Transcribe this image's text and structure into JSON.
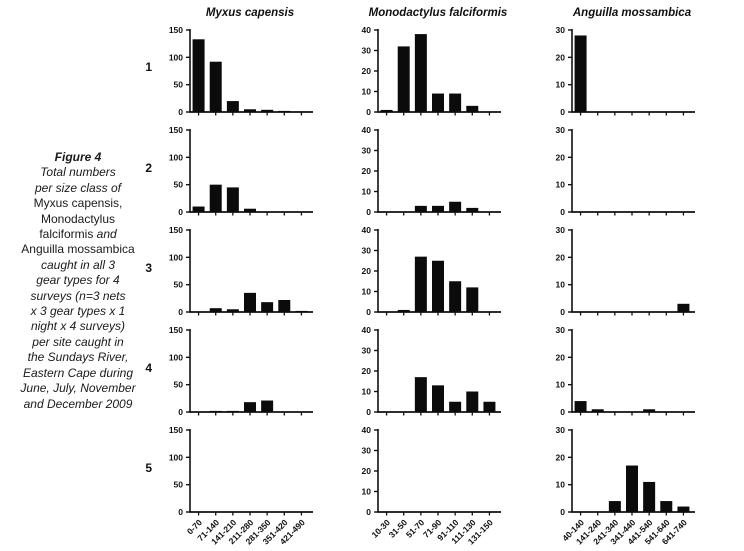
{
  "caption": {
    "lines": [
      [
        {
          "text": "Figure 4",
          "style": "bold-italic"
        }
      ],
      [
        {
          "text": "Total numbers",
          "style": "italic"
        }
      ],
      [
        {
          "text": "per size class of",
          "style": "italic"
        }
      ],
      [
        {
          "text": "Myxus capensis,",
          "style": "normal"
        }
      ],
      [
        {
          "text": "Monodactylus",
          "style": "normal"
        }
      ],
      [
        {
          "text": "falciformis ",
          "style": "normal"
        },
        {
          "text": "and",
          "style": "italic"
        }
      ],
      [
        {
          "text": "Anguilla mossambica",
          "style": "normal"
        }
      ],
      [
        {
          "text": "caught in all 3",
          "style": "italic"
        }
      ],
      [
        {
          "text": "gear types for 4",
          "style": "italic"
        }
      ],
      [
        {
          "text": "surveys (n=3 nets",
          "style": "italic"
        }
      ],
      [
        {
          "text": "x 3 gear types x 1",
          "style": "italic"
        }
      ],
      [
        {
          "text": "night x 4 surveys)",
          "style": "italic"
        }
      ],
      [
        {
          "text": "per site caught in",
          "style": "italic"
        }
      ],
      [
        {
          "text": "the Sundays River,",
          "style": "italic"
        }
      ],
      [
        {
          "text": "Eastern Cape during",
          "style": "italic"
        }
      ],
      [
        {
          "text": "June, July, November",
          "style": "italic"
        }
      ],
      [
        {
          "text": "and December 2009",
          "style": "italic"
        }
      ]
    ]
  },
  "row_labels": [
    "1",
    "2",
    "3",
    "4",
    "5"
  ],
  "style": {
    "bar_color": "#0b0b0b",
    "axis_color": "#111111",
    "background": "#ffffff"
  },
  "chart_data": [
    {
      "type": "bar",
      "title": "Myxus capensis",
      "categories": [
        "0-70",
        "71-140",
        "141-210",
        "211-280",
        "281-350",
        "351-420",
        "421-490"
      ],
      "series": [
        {
          "name": "1",
          "values": [
            133,
            92,
            20,
            5,
            4,
            2,
            1
          ]
        },
        {
          "name": "2",
          "values": [
            10,
            50,
            45,
            6,
            0,
            0,
            0
          ]
        },
        {
          "name": "3",
          "values": [
            0,
            7,
            5,
            35,
            18,
            22,
            2
          ]
        },
        {
          "name": "4",
          "values": [
            0,
            2,
            2,
            18,
            21,
            0,
            0
          ]
        },
        {
          "name": "5",
          "values": [
            0,
            0,
            0,
            0,
            0,
            0,
            0
          ]
        }
      ],
      "ylim": [
        0,
        150
      ],
      "yticks": [
        0,
        50,
        100,
        150
      ],
      "xlabel": "",
      "ylabel": "",
      "grid": false,
      "legend": false
    },
    {
      "type": "bar",
      "title": "Monodactylus falciformis",
      "categories": [
        "10-30",
        "31-50",
        "51-70",
        "71-90",
        "91-110",
        "111-130",
        "131-150"
      ],
      "series": [
        {
          "name": "1",
          "values": [
            1,
            32,
            38,
            9,
            9,
            3,
            0
          ]
        },
        {
          "name": "2",
          "values": [
            0,
            0,
            3,
            3,
            5,
            2,
            0
          ]
        },
        {
          "name": "3",
          "values": [
            0,
            1,
            27,
            25,
            15,
            12,
            0
          ]
        },
        {
          "name": "4",
          "values": [
            0,
            0,
            17,
            13,
            5,
            10,
            5
          ]
        },
        {
          "name": "5",
          "values": [
            0,
            0,
            0,
            0,
            0,
            0,
            0
          ]
        }
      ],
      "ylim": [
        0,
        40
      ],
      "yticks": [
        0,
        10,
        20,
        30,
        40
      ],
      "xlabel": "",
      "ylabel": "",
      "grid": false,
      "legend": false
    },
    {
      "type": "bar",
      "title": "Anguilla mossambica",
      "categories": [
        "40-140",
        "141-240",
        "241-340",
        "341-440",
        "441-540",
        "541-640",
        "641-740"
      ],
      "series": [
        {
          "name": "1",
          "values": [
            28,
            0,
            0,
            0,
            0,
            0,
            0
          ]
        },
        {
          "name": "2",
          "values": [
            0,
            0,
            0,
            0,
            0,
            0,
            0
          ]
        },
        {
          "name": "3",
          "values": [
            0,
            0,
            0,
            0,
            0,
            0,
            3
          ]
        },
        {
          "name": "4",
          "values": [
            4,
            1,
            0,
            0,
            1,
            0,
            0
          ]
        },
        {
          "name": "5",
          "values": [
            0,
            0,
            4,
            17,
            11,
            4,
            2
          ]
        }
      ],
      "ylim": [
        0,
        30
      ],
      "yticks": [
        0,
        10,
        20,
        30
      ],
      "xlabel": "",
      "ylabel": "",
      "grid": false,
      "legend": false
    }
  ]
}
